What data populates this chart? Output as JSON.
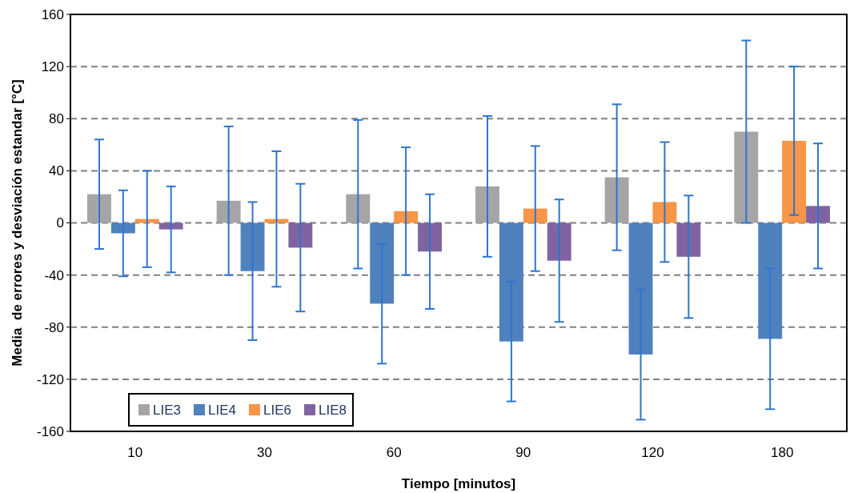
{
  "chart_data": {
    "type": "bar",
    "xlabel": "Tiempo [minutos]",
    "ylabel": "Media  de errores y desviación estandar [°C]",
    "categories": [
      "10",
      "30",
      "60",
      "90",
      "120",
      "180"
    ],
    "series": [
      {
        "name": "LIE3",
        "color": "#a5a5a5",
        "values": [
          22,
          17,
          22,
          28,
          35,
          70
        ],
        "errors": [
          42,
          57,
          57,
          54,
          56,
          70
        ]
      },
      {
        "name": "LIE4",
        "color": "#4f81bd",
        "values": [
          -8,
          -37,
          -62,
          -91,
          -101,
          -89
        ],
        "errors": [
          33,
          53,
          46,
          46,
          50,
          54
        ]
      },
      {
        "name": "LIE6",
        "color": "#f79646",
        "values": [
          3,
          3,
          9,
          11,
          16,
          63
        ],
        "errors": [
          37,
          52,
          49,
          48,
          46,
          57
        ]
      },
      {
        "name": "LIE8",
        "color": "#8064a2",
        "values": [
          -5,
          -19,
          -22,
          -29,
          -26,
          13
        ],
        "errors": [
          33,
          49,
          44,
          47,
          47,
          48
        ]
      }
    ],
    "ylim": [
      -160,
      160
    ],
    "yticks": [
      -160,
      -120,
      -80,
      -40,
      0,
      40,
      80,
      120,
      160
    ],
    "grid": "y",
    "legend": "bottom left"
  }
}
